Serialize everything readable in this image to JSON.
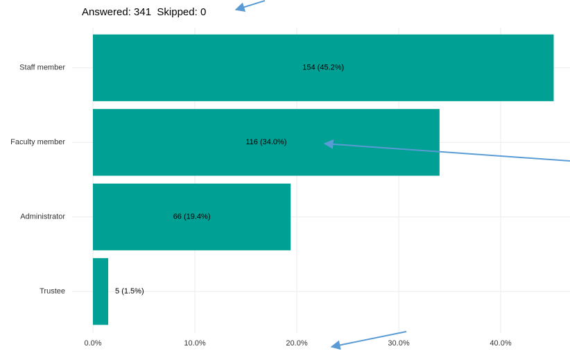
{
  "chart_data": {
    "type": "bar",
    "orientation": "horizontal",
    "subtitle": "Answered: 341  Skipped: 0",
    "categories": [
      "Staff member",
      "Faculty member",
      "Administrator",
      "Trustee"
    ],
    "values": [
      45.2,
      34.0,
      19.4,
      1.5
    ],
    "value_labels": [
      "154 (45.2%)",
      "116 (34.0%)",
      "66 (19.4%)",
      "5 (1.5%)"
    ],
    "color": "#00a095",
    "xlim": [
      0,
      46.8
    ],
    "xticks": [
      {
        "value": 0,
        "label": "0.0%"
      },
      {
        "value": 10,
        "label": "10.0%"
      },
      {
        "value": 20,
        "label": "20.0%"
      },
      {
        "value": 30,
        "label": "30.0%"
      },
      {
        "value": 40,
        "label": "40.0%"
      }
    ],
    "grid": true
  }
}
